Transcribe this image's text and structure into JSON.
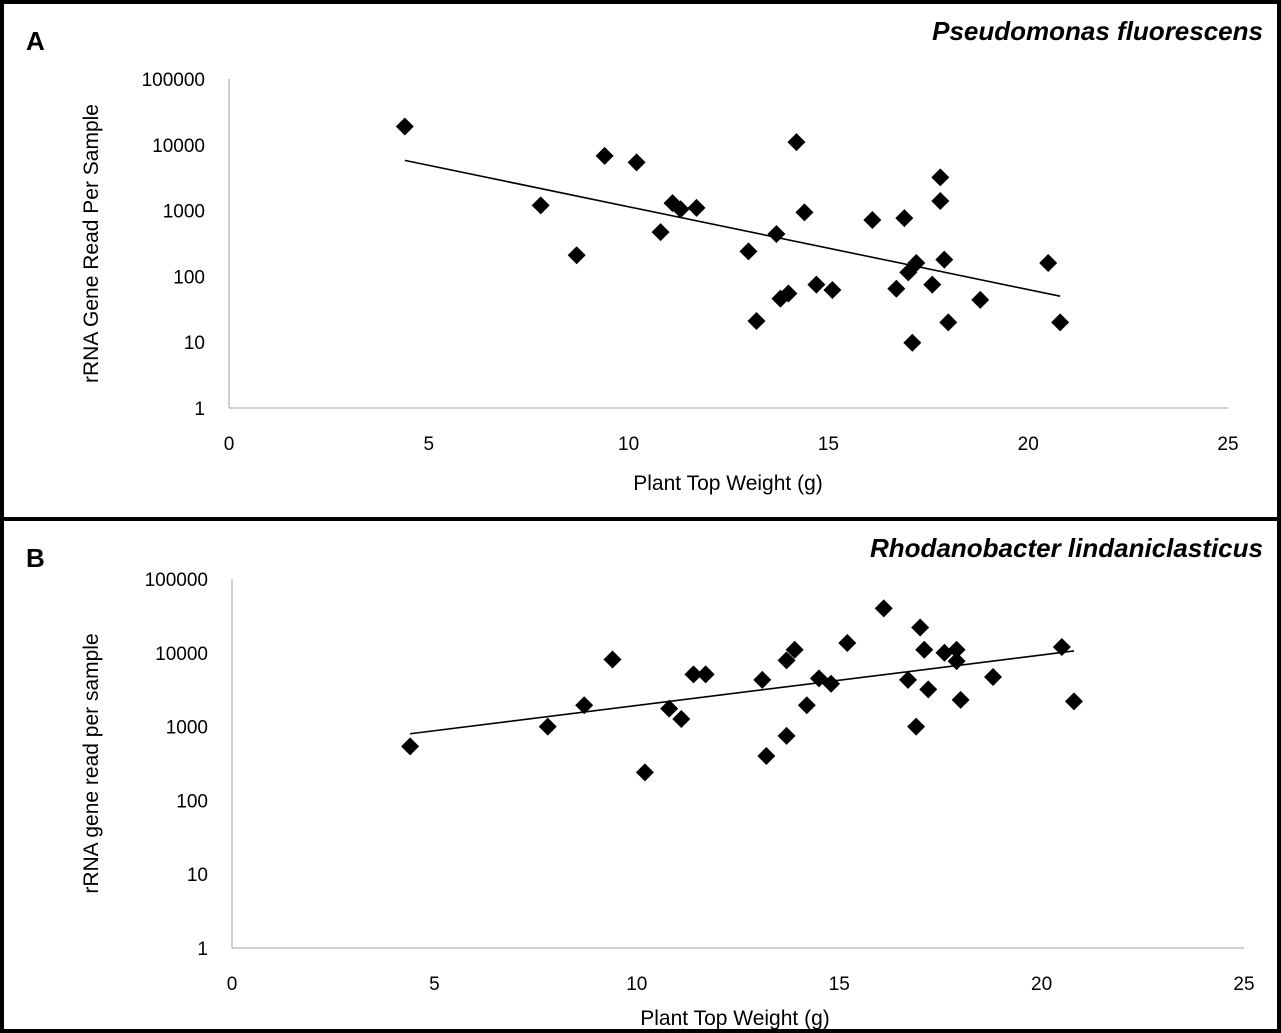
{
  "chart_data": [
    {
      "type": "scatter",
      "panel_letter": "A",
      "title": "Pseudomonas fluorescens",
      "xlabel": "Plant Top Weight (g)",
      "ylabel": "rRNA Gene Read Per Sample",
      "xlim": [
        0,
        25
      ],
      "ylim": [
        1,
        100000
      ],
      "yscale": "log",
      "x_ticks": [
        "0",
        "5",
        "10",
        "15",
        "20",
        "25"
      ],
      "y_ticks": [
        "1",
        "10",
        "100",
        "1000",
        "10000",
        "100000"
      ],
      "grid": false,
      "marker": "diamond",
      "points": [
        [
          4.4,
          19000
        ],
        [
          7.8,
          1200
        ],
        [
          8.7,
          210
        ],
        [
          9.4,
          6800
        ],
        [
          10.2,
          5400
        ],
        [
          10.8,
          470
        ],
        [
          11.1,
          1300
        ],
        [
          11.3,
          1050
        ],
        [
          11.7,
          1100
        ],
        [
          13.0,
          240
        ],
        [
          13.2,
          21
        ],
        [
          13.7,
          440
        ],
        [
          13.8,
          46
        ],
        [
          14.0,
          55
        ],
        [
          14.2,
          11000
        ],
        [
          14.4,
          940
        ],
        [
          14.7,
          75
        ],
        [
          15.1,
          62
        ],
        [
          16.1,
          720
        ],
        [
          16.7,
          65
        ],
        [
          16.9,
          770
        ],
        [
          17.0,
          115
        ],
        [
          17.1,
          9.8
        ],
        [
          17.2,
          160
        ],
        [
          17.6,
          75
        ],
        [
          17.8,
          3200
        ],
        [
          17.8,
          1400
        ],
        [
          17.9,
          180
        ],
        [
          18.0,
          20
        ],
        [
          18.8,
          44
        ],
        [
          20.5,
          160
        ],
        [
          20.8,
          20
        ]
      ],
      "trendline": {
        "x": [
          4.4,
          20.8
        ],
        "y": [
          5800,
          50
        ]
      }
    },
    {
      "type": "scatter",
      "panel_letter": "B",
      "title": "Rhodanobacter lindaniclasticus",
      "xlabel": "Plant Top Weight (g)",
      "ylabel": "rRNA gene read per sample",
      "xlim": [
        0,
        25
      ],
      "ylim": [
        1,
        100000
      ],
      "yscale": "log",
      "x_ticks": [
        "0",
        "5",
        "10",
        "15",
        "20",
        "25"
      ],
      "y_ticks": [
        "1",
        "10",
        "100",
        "1000",
        "10000",
        "100000"
      ],
      "grid": false,
      "marker": "diamond",
      "points": [
        [
          4.4,
          540
        ],
        [
          7.8,
          1000
        ],
        [
          8.7,
          1950
        ],
        [
          9.4,
          8100
        ],
        [
          10.2,
          240
        ],
        [
          10.8,
          1750
        ],
        [
          11.1,
          1270
        ],
        [
          11.4,
          5100
        ],
        [
          11.7,
          5100
        ],
        [
          13.1,
          4300
        ],
        [
          13.2,
          400
        ],
        [
          13.7,
          750
        ],
        [
          13.7,
          7900
        ],
        [
          13.9,
          11000
        ],
        [
          14.2,
          1950
        ],
        [
          14.5,
          4500
        ],
        [
          14.8,
          3800
        ],
        [
          15.2,
          13600
        ],
        [
          16.1,
          40000
        ],
        [
          16.7,
          4300
        ],
        [
          16.9,
          1000
        ],
        [
          17.0,
          22000
        ],
        [
          17.1,
          11000
        ],
        [
          17.2,
          3200
        ],
        [
          17.6,
          10000
        ],
        [
          17.9,
          7700
        ],
        [
          17.9,
          11000
        ],
        [
          18.0,
          2300
        ],
        [
          18.8,
          4700
        ],
        [
          20.5,
          12000
        ],
        [
          20.8,
          2200
        ]
      ],
      "trendline": {
        "x": [
          4.4,
          20.8
        ],
        "y": [
          800,
          10600
        ]
      }
    }
  ]
}
